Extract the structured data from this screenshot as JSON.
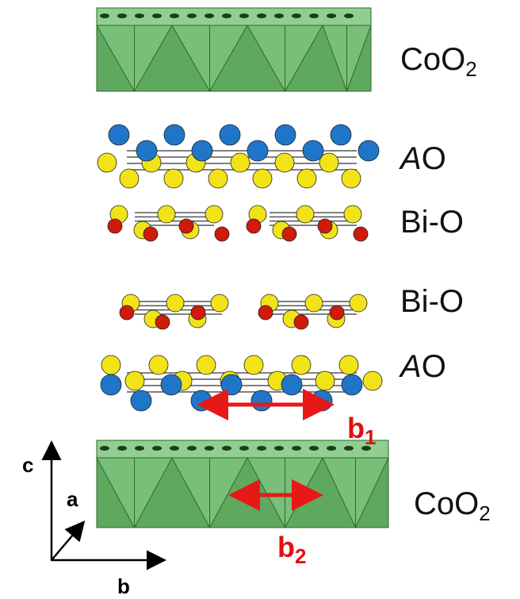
{
  "layers": [
    {
      "text": "CoO",
      "subscript": "2"
    },
    {
      "italic": "A",
      "text": "O"
    },
    {
      "text": "Bi-O"
    },
    {
      "text": "Bi-O"
    },
    {
      "italic": "A",
      "text": "O"
    },
    {
      "text": "CoO",
      "subscript": "2"
    }
  ],
  "vectors": [
    {
      "text": "b",
      "subscript": "1"
    },
    {
      "text": "b",
      "subscript": "2"
    }
  ],
  "axes": {
    "c": "c",
    "a": "a",
    "b": "b"
  }
}
